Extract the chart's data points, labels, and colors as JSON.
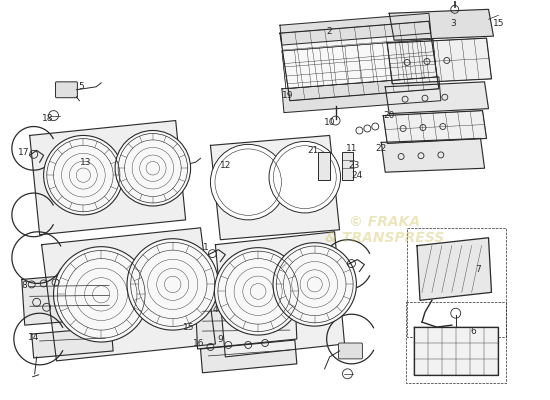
{
  "bg_color": "#ffffff",
  "line_color": "#2a2a2a",
  "lw": 0.8,
  "figsize": [
    5.5,
    4.0
  ],
  "dpi": 100,
  "watermark_color": "#c8b840",
  "watermark_alpha": 0.35
}
